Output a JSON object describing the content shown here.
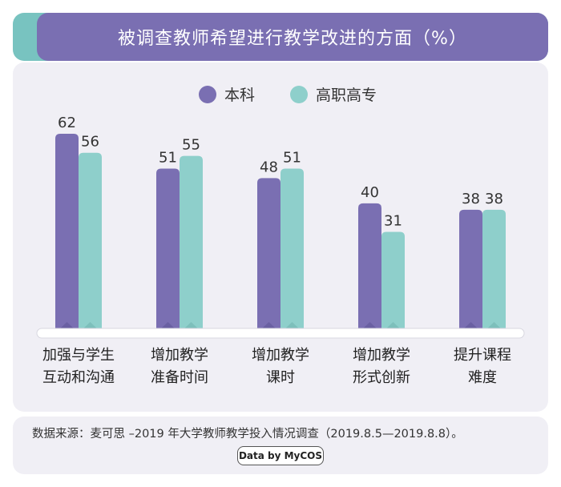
{
  "colors": {
    "benke": "#7a6fb2",
    "benke_dark": "#5d5396",
    "gaozhi": "#8ecfcb",
    "gaozhi_dark": "#6fb3af",
    "title_band": "#7a6fb2",
    "title_accent": "#78c3c0",
    "panel": "#f0eff5"
  },
  "source": "数据来源：麦可思 –2019 年大学教师教学投入情况调查（2019.8.5—2019.8.8）。",
  "badge": "Data by MyCOS",
  "chart_data": {
    "type": "bar",
    "title": "被调查教师希望进行教学改进的方面（%）",
    "categories": [
      "加强与学生 互动和沟通",
      "增加教学 准备时间",
      "增加教学 课时",
      "增加教学 形式创新",
      "提升课程 难度"
    ],
    "category_lines": [
      [
        "加强与学生",
        "互动和沟通"
      ],
      [
        "增加教学",
        "准备时间"
      ],
      [
        "增加教学",
        "课时"
      ],
      [
        "增加教学",
        "形式创新"
      ],
      [
        "提升课程",
        "难度"
      ]
    ],
    "series": [
      {
        "name": "本科",
        "values": [
          62,
          51,
          48,
          40,
          38
        ]
      },
      {
        "name": "高职高专",
        "values": [
          56,
          55,
          51,
          31,
          38
        ]
      }
    ],
    "ylim": [
      0,
      65
    ],
    "grid": false,
    "legend": "top-center",
    "xlabel": "",
    "ylabel": ""
  }
}
